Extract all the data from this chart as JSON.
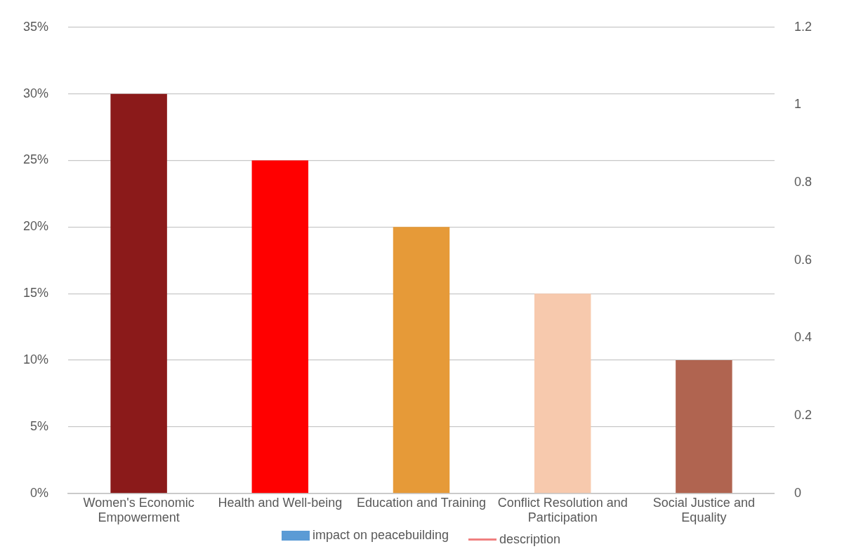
{
  "chart_data": {
    "type": "bar",
    "categories": [
      "Women's Economic Empowerment",
      "Health and Well-being",
      "Education and Training",
      "Conflict Resolution and Participation",
      "Social Justice and Equality"
    ],
    "series": [
      {
        "name": "impact on peacebuilding",
        "color": "#5b9bd5",
        "colors": [
          "#8b1a1a",
          "#ff0000",
          "#e69a38",
          "#f7c9ad",
          "#b06450"
        ],
        "values": [
          30,
          25,
          20,
          15,
          10
        ]
      },
      {
        "name": "description",
        "type": "line",
        "color": "#f08080",
        "values": [
          null,
          null,
          null,
          null,
          null
        ]
      }
    ],
    "ylim": [
      0,
      35
    ],
    "yticks": [
      {
        "value": 0,
        "label": "0%"
      },
      {
        "value": 5,
        "label": "5%"
      },
      {
        "value": 10,
        "label": "10%"
      },
      {
        "value": 15,
        "label": "15%"
      },
      {
        "value": 20,
        "label": "20%"
      },
      {
        "value": 25,
        "label": "25%"
      },
      {
        "value": 30,
        "label": "30%"
      },
      {
        "value": 35,
        "label": "35%"
      }
    ],
    "y2lim": [
      0,
      1.2
    ],
    "y2ticks": [
      0,
      0.2,
      0.4,
      0.6,
      0.8,
      1,
      1.2
    ],
    "grid": "y",
    "legend": "bottom"
  }
}
